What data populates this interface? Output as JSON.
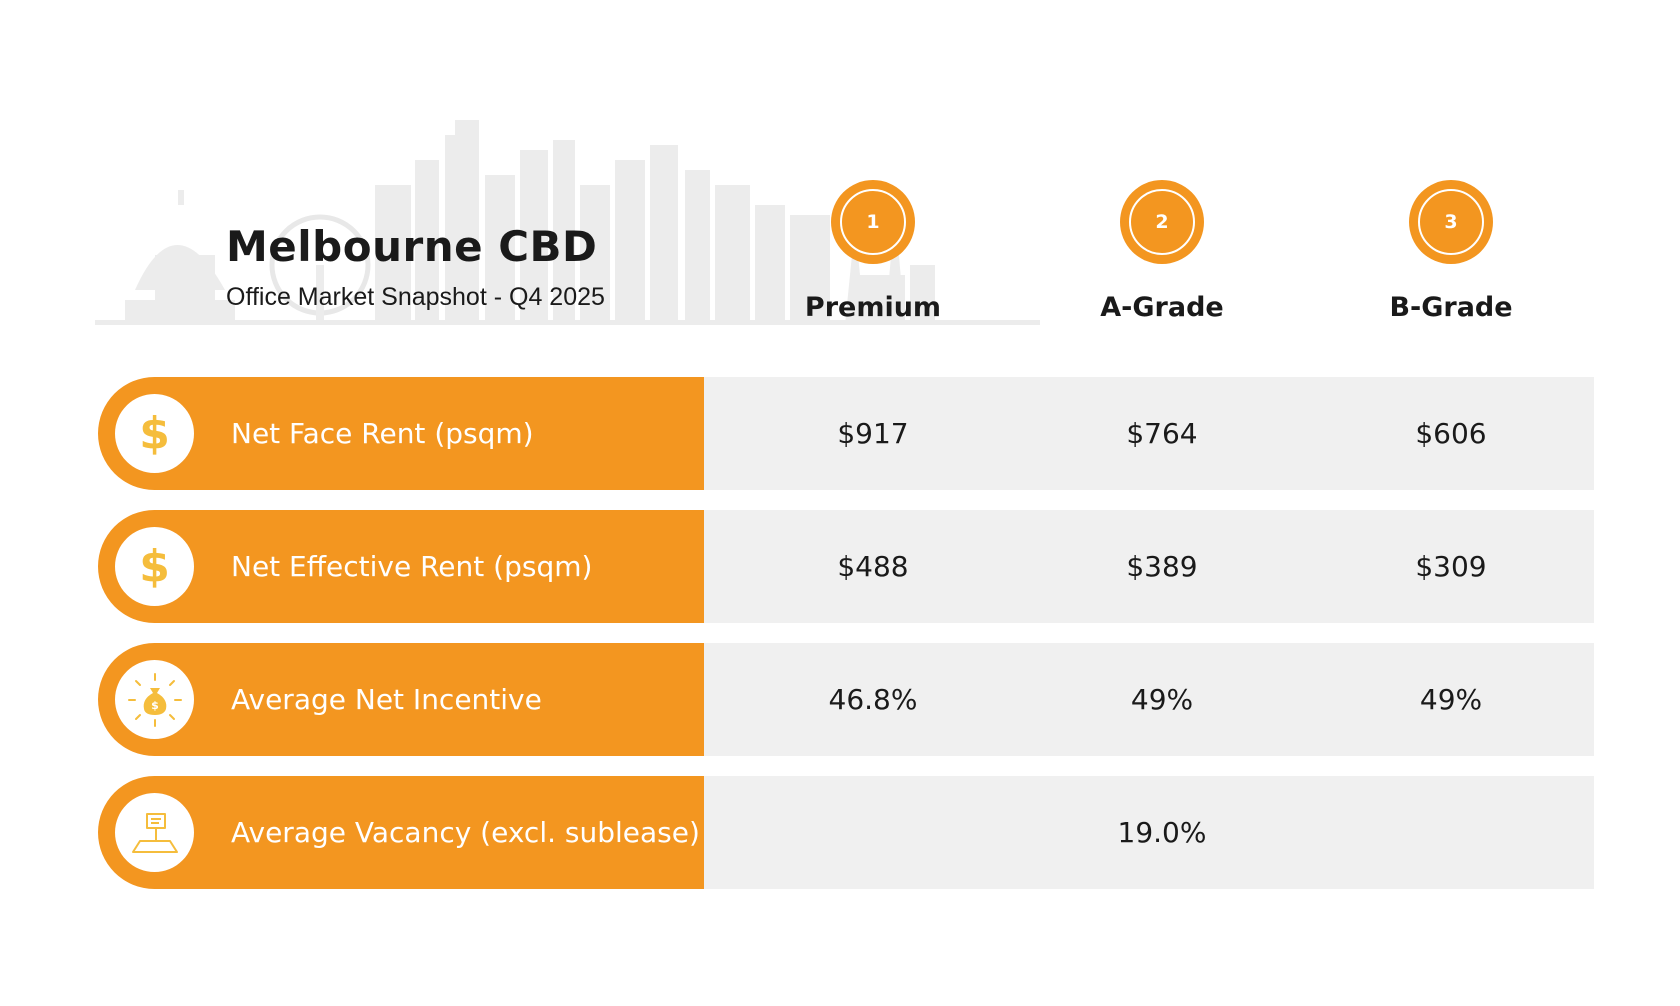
{
  "header": {
    "title": "Melbourne CBD",
    "subtitle": "Office Market Snapshot - Q4 2025"
  },
  "columns": [
    {
      "number": "1",
      "label": "Premium"
    },
    {
      "number": "2",
      "label": "A-Grade"
    },
    {
      "number": "3",
      "label": "B-Grade"
    }
  ],
  "rows": [
    {
      "icon": "dollar-icon",
      "label": "Net Face Rent (psqm)",
      "values": [
        "$917",
        "$764",
        "$606"
      ]
    },
    {
      "icon": "dollar-icon",
      "label": "Net Effective Rent (psqm)",
      "values": [
        "$488",
        "$389",
        "$309"
      ]
    },
    {
      "icon": "money-bag-icon",
      "label": "Average Net Incentive",
      "values": [
        "46.8%",
        "49%",
        "49%"
      ]
    },
    {
      "icon": "vacancy-sign-icon",
      "label": "Average Vacancy (excl. sublease)",
      "merged_value": "19.0%"
    }
  ],
  "colors": {
    "accent": "#f39620",
    "icon_gold": "#f5bd3c",
    "value_band": "#f0f0f0",
    "skyline": "#ededed"
  }
}
